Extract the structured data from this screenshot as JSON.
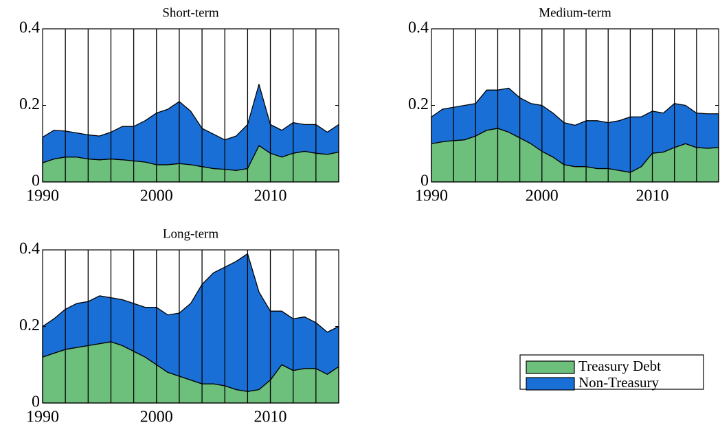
{
  "chart_data": [
    {
      "type": "stacked-area",
      "title": "Short-term",
      "x": [
        1990,
        1991,
        1992,
        1993,
        1994,
        1995,
        1996,
        1997,
        1998,
        1999,
        2000,
        2001,
        2002,
        2003,
        2004,
        2005,
        2006,
        2007,
        2008,
        2009,
        2010,
        2011,
        2012,
        2013,
        2014,
        2015,
        2016
      ],
      "series": [
        {
          "name": "Treasury Debt",
          "color": "#6dbf7c",
          "values": [
            0.05,
            0.06,
            0.065,
            0.065,
            0.06,
            0.058,
            0.06,
            0.058,
            0.055,
            0.052,
            0.045,
            0.045,
            0.048,
            0.045,
            0.04,
            0.035,
            0.033,
            0.03,
            0.035,
            0.095,
            0.075,
            0.065,
            0.075,
            0.08,
            0.075,
            0.072,
            0.078
          ]
        },
        {
          "name": "Non-Treasury",
          "color": "#1a6fd6",
          "values": [
            0.067,
            0.075,
            0.068,
            0.063,
            0.063,
            0.062,
            0.07,
            0.087,
            0.09,
            0.108,
            0.135,
            0.145,
            0.162,
            0.14,
            0.1,
            0.09,
            0.077,
            0.09,
            0.115,
            0.16,
            0.075,
            0.07,
            0.08,
            0.07,
            0.075,
            0.058,
            0.072
          ]
        }
      ],
      "xlim": [
        1990,
        2016
      ],
      "ylim": [
        0,
        0.4
      ],
      "xticks": [
        1990,
        2000,
        2010
      ],
      "yticks": [
        0,
        0.2,
        0.4
      ],
      "xgrid": [
        1992,
        1994,
        1996,
        1998,
        2000,
        2002,
        2004,
        2006,
        2008,
        2010,
        2012,
        2014
      ]
    },
    {
      "type": "stacked-area",
      "title": "Medium-term",
      "x": [
        1990,
        1991,
        1992,
        1993,
        1994,
        1995,
        1996,
        1997,
        1998,
        1999,
        2000,
        2001,
        2002,
        2003,
        2004,
        2005,
        2006,
        2007,
        2008,
        2009,
        2010,
        2011,
        2012,
        2013,
        2014,
        2015,
        2016
      ],
      "series": [
        {
          "name": "Treasury Debt",
          "color": "#6dbf7c",
          "values": [
            0.1,
            0.105,
            0.108,
            0.11,
            0.12,
            0.135,
            0.14,
            0.13,
            0.115,
            0.1,
            0.08,
            0.065,
            0.045,
            0.04,
            0.04,
            0.035,
            0.035,
            0.03,
            0.025,
            0.04,
            0.075,
            0.078,
            0.09,
            0.1,
            0.09,
            0.088,
            0.09
          ]
        },
        {
          "name": "Non-Treasury",
          "color": "#1a6fd6",
          "values": [
            0.07,
            0.085,
            0.087,
            0.09,
            0.085,
            0.105,
            0.1,
            0.115,
            0.105,
            0.105,
            0.12,
            0.115,
            0.11,
            0.108,
            0.12,
            0.125,
            0.12,
            0.13,
            0.145,
            0.13,
            0.11,
            0.102,
            0.115,
            0.1,
            0.09,
            0.09,
            0.088
          ]
        }
      ],
      "xlim": [
        1990,
        2016
      ],
      "ylim": [
        0,
        0.4
      ],
      "xticks": [
        1990,
        2000,
        2010
      ],
      "yticks": [
        0,
        0.2,
        0.4
      ],
      "xgrid": [
        1992,
        1994,
        1996,
        1998,
        2000,
        2002,
        2004,
        2006,
        2008,
        2010,
        2012,
        2014
      ]
    },
    {
      "type": "stacked-area",
      "title": "Long-term",
      "x": [
        1990,
        1991,
        1992,
        1993,
        1994,
        1995,
        1996,
        1997,
        1998,
        1999,
        2000,
        2001,
        2002,
        2003,
        2004,
        2005,
        2006,
        2007,
        2008,
        2009,
        2010,
        2011,
        2012,
        2013,
        2014,
        2015,
        2016
      ],
      "series": [
        {
          "name": "Treasury Debt",
          "color": "#6dbf7c",
          "values": [
            0.12,
            0.13,
            0.14,
            0.145,
            0.15,
            0.155,
            0.16,
            0.15,
            0.135,
            0.12,
            0.1,
            0.08,
            0.07,
            0.06,
            0.05,
            0.05,
            0.045,
            0.035,
            0.03,
            0.035,
            0.06,
            0.1,
            0.085,
            0.09,
            0.09,
            0.075,
            0.095
          ]
        },
        {
          "name": "Non-Treasury",
          "color": "#1a6fd6",
          "values": [
            0.08,
            0.09,
            0.105,
            0.115,
            0.115,
            0.125,
            0.115,
            0.12,
            0.125,
            0.13,
            0.15,
            0.15,
            0.165,
            0.2,
            0.26,
            0.29,
            0.31,
            0.335,
            0.36,
            0.255,
            0.18,
            0.14,
            0.135,
            0.135,
            0.12,
            0.11,
            0.105
          ]
        }
      ],
      "xlim": [
        1990,
        2016
      ],
      "ylim": [
        0,
        0.4
      ],
      "xticks": [
        1990,
        2000,
        2010
      ],
      "yticks": [
        0,
        0.2,
        0.4
      ],
      "xgrid": [
        1992,
        1994,
        1996,
        1998,
        2000,
        2002,
        2004,
        2006,
        2008,
        2010,
        2012,
        2014
      ]
    }
  ]
}
